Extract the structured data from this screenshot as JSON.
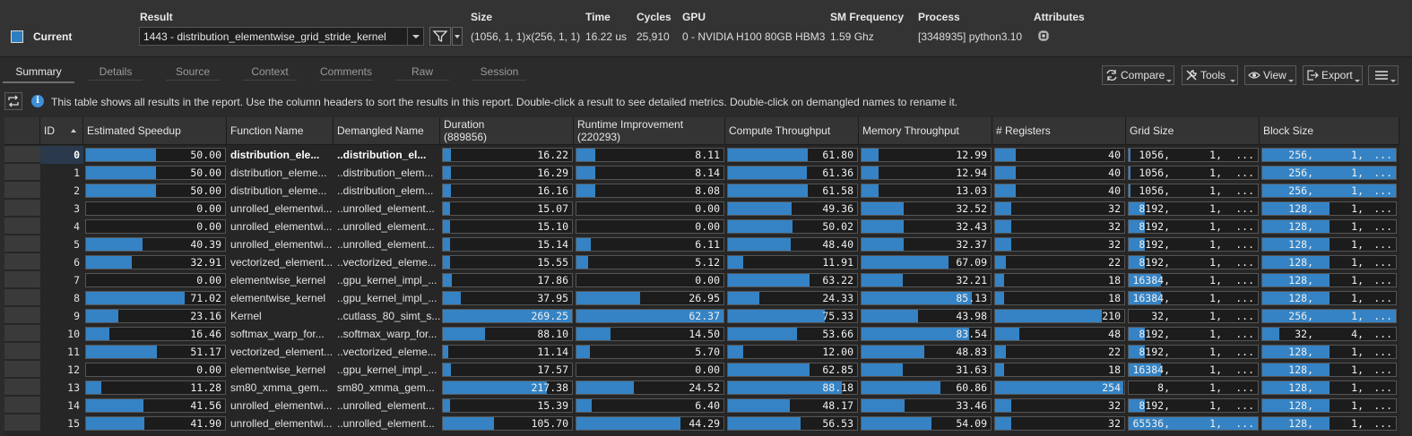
{
  "header": {
    "current_label": "Current",
    "result": {
      "label": "Result",
      "value": "1443 - distribution_elementwise_grid_stride_kernel"
    },
    "size": {
      "label": "Size",
      "value": "(1056, 1, 1)x(256, 1, 1)"
    },
    "time": {
      "label": "Time",
      "value": "16.22 us"
    },
    "cycles": {
      "label": "Cycles",
      "value": "25,910"
    },
    "gpu": {
      "label": "GPU",
      "value": "0 - NVIDIA H100 80GB HBM3"
    },
    "sm_frequency": {
      "label": "SM Frequency",
      "value": "1.59 Ghz"
    },
    "process": {
      "label": "Process",
      "value": "[3348935] python3.10"
    },
    "attributes": {
      "label": "Attributes"
    },
    "accent_color": "#2d7fc1"
  },
  "tabs": [
    {
      "label": "Summary",
      "active": true
    },
    {
      "label": "Details",
      "active": false
    },
    {
      "label": "Source",
      "active": false
    },
    {
      "label": "Context",
      "active": false
    },
    {
      "label": "Comments",
      "active": false
    },
    {
      "label": "Raw",
      "active": false
    },
    {
      "label": "Session",
      "active": false
    }
  ],
  "toolbar": {
    "compare": "Compare",
    "tools": "Tools",
    "view": "View",
    "export": "Export"
  },
  "info": {
    "text": "This table shows all results in the report. Use the column headers to sort the results in this report. Double-click a result to see detailed metrics. Double-click on demangled names to rename it."
  },
  "table": {
    "columns": {
      "id": "ID",
      "speedup": "Estimated Speedup",
      "function": "Function Name",
      "demangled": "Demangled Name",
      "duration": "Duration",
      "duration_total": "(889856)",
      "runtime": "Runtime Improvement",
      "runtime_total": "(220293)",
      "compute": "Compute Throughput",
      "memory": "Memory Throughput",
      "registers": "# Registers",
      "grid": "Grid Size",
      "block": "Block Size"
    },
    "bar_color": "#3583c4",
    "rows": [
      {
        "id": "0",
        "speedup": "50.00",
        "function": "distribution_ele...",
        "demangled": "..distribution_el...",
        "duration": "16.22",
        "runtime": "8.11",
        "compute": "61.80",
        "memory": "12.99",
        "registers": "40",
        "grid": "1056,",
        "block": "256,",
        "selected": true
      },
      {
        "id": "1",
        "speedup": "50.00",
        "function": "distribution_eleme...",
        "demangled": "..distribution_elem...",
        "duration": "16.29",
        "runtime": "8.14",
        "compute": "61.36",
        "memory": "12.94",
        "registers": "40",
        "grid": "1056,",
        "block": "256,"
      },
      {
        "id": "2",
        "speedup": "50.00",
        "function": "distribution_eleme...",
        "demangled": "..distribution_elem...",
        "duration": "16.16",
        "runtime": "8.08",
        "compute": "61.58",
        "memory": "13.03",
        "registers": "40",
        "grid": "1056,",
        "block": "256,"
      },
      {
        "id": "3",
        "speedup": "0.00",
        "function": "unrolled_elementwi...",
        "demangled": "..unrolled_element...",
        "duration": "15.07",
        "runtime": "0.00",
        "compute": "49.36",
        "memory": "32.52",
        "registers": "32",
        "grid": "8192,",
        "block": "128,"
      },
      {
        "id": "4",
        "speedup": "0.00",
        "function": "unrolled_elementwi...",
        "demangled": "..unrolled_element...",
        "duration": "15.10",
        "runtime": "0.00",
        "compute": "50.02",
        "memory": "32.43",
        "registers": "32",
        "grid": "8192,",
        "block": "128,"
      },
      {
        "id": "5",
        "speedup": "40.39",
        "function": "unrolled_elementwi...",
        "demangled": "..unrolled_element...",
        "duration": "15.14",
        "runtime": "6.11",
        "compute": "48.40",
        "memory": "32.37",
        "registers": "32",
        "grid": "8192,",
        "block": "128,"
      },
      {
        "id": "6",
        "speedup": "32.91",
        "function": "vectorized_element...",
        "demangled": "..vectorized_eleme...",
        "duration": "15.55",
        "runtime": "5.12",
        "compute": "11.91",
        "memory": "67.09",
        "registers": "22",
        "grid": "8192,",
        "block": "128,"
      },
      {
        "id": "7",
        "speedup": "0.00",
        "function": "elementwise_kernel",
        "demangled": "..gpu_kernel_impl_...",
        "duration": "17.86",
        "runtime": "0.00",
        "compute": "63.22",
        "memory": "32.21",
        "registers": "18",
        "grid": "16384,",
        "block": "128,"
      },
      {
        "id": "8",
        "speedup": "71.02",
        "function": "elementwise_kernel",
        "demangled": "..gpu_kernel_impl_...",
        "duration": "37.95",
        "runtime": "26.95",
        "compute": "24.33",
        "memory": "85.13",
        "registers": "18",
        "grid": "16384,",
        "block": "128,"
      },
      {
        "id": "9",
        "speedup": "23.16",
        "function": "Kernel",
        "demangled": "..cutlass_80_simt_s...",
        "duration": "269.25",
        "runtime": "62.37",
        "compute": "75.33",
        "memory": "43.98",
        "registers": "210",
        "grid": "32,",
        "block": "256,"
      },
      {
        "id": "10",
        "speedup": "16.46",
        "function": "softmax_warp_for...",
        "demangled": "..softmax_warp_for...",
        "duration": "88.10",
        "runtime": "14.50",
        "compute": "53.66",
        "memory": "83.54",
        "registers": "48",
        "grid": "8192,",
        "block": "32,"
      },
      {
        "id": "11",
        "speedup": "51.17",
        "function": "vectorized_element...",
        "demangled": "..vectorized_eleme...",
        "duration": "11.14",
        "runtime": "5.70",
        "compute": "12.00",
        "memory": "48.83",
        "registers": "22",
        "grid": "8192,",
        "block": "128,"
      },
      {
        "id": "12",
        "speedup": "0.00",
        "function": "elementwise_kernel",
        "demangled": "..gpu_kernel_impl_...",
        "duration": "17.57",
        "runtime": "0.00",
        "compute": "62.85",
        "memory": "31.63",
        "registers": "18",
        "grid": "16384,",
        "block": "128,"
      },
      {
        "id": "13",
        "speedup": "11.28",
        "function": "sm80_xmma_gem...",
        "demangled": "sm80_xmma_gem...",
        "duration": "217.38",
        "runtime": "24.52",
        "compute": "88.18",
        "memory": "60.86",
        "registers": "254",
        "grid": "8,",
        "block": "128,"
      },
      {
        "id": "14",
        "speedup": "41.56",
        "function": "unrolled_elementwi...",
        "demangled": "..unrolled_element...",
        "duration": "15.39",
        "runtime": "6.40",
        "compute": "48.17",
        "memory": "33.46",
        "registers": "32",
        "grid": "8192,",
        "block": "128,"
      },
      {
        "id": "15",
        "speedup": "41.90",
        "function": "unrolled_elementwi...",
        "demangled": "..unrolled_element...",
        "duration": "105.70",
        "runtime": "44.29",
        "compute": "56.53",
        "memory": "54.09",
        "registers": "32",
        "grid": "65536,",
        "block": "128,"
      }
    ],
    "grid_rest": [
      "1,",
      "..."
    ],
    "block_rest_default": [
      "1,",
      "..."
    ],
    "block_rest_row10": [
      "4,",
      "..."
    ]
  }
}
